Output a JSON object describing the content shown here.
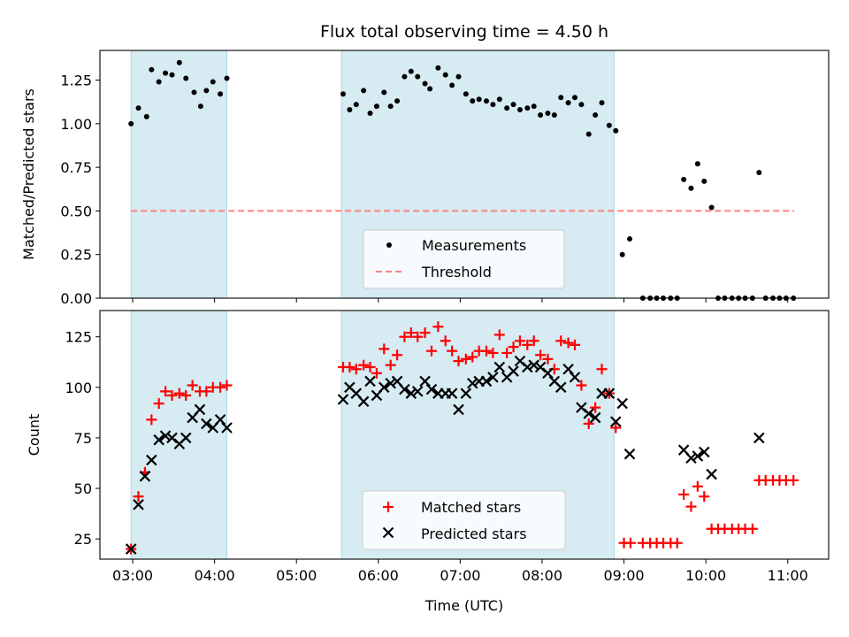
{
  "chart_data": {
    "type": "scatter",
    "title": "Flux total observing time = 4.50 h",
    "xlabel": "Time (UTC)",
    "x_unit": "hours UTC",
    "xlim": [
      2.6,
      11.5
    ],
    "xticks": [
      3,
      4,
      5,
      6,
      7,
      8,
      9,
      10,
      11
    ],
    "xtick_labels": [
      "03:00",
      "04:00",
      "05:00",
      "06:00",
      "07:00",
      "08:00",
      "09:00",
      "10:00",
      "11:00"
    ],
    "shaded_intervals": [
      [
        2.98,
        4.15
      ],
      [
        5.55,
        8.88
      ]
    ],
    "shade_color": "#add8e6",
    "panels": [
      {
        "ylabel": "Matched/Predicted stars",
        "ylim": [
          0,
          1.42
        ],
        "yticks": [
          0.0,
          0.25,
          0.5,
          0.75,
          1.0,
          1.25
        ],
        "ytick_labels": [
          "0.00",
          "0.25",
          "0.50",
          "0.75",
          "1.00",
          "1.25"
        ],
        "threshold": 0.5,
        "threshold_x": [
          2.98,
          11.08
        ],
        "threshold_color": "#ff7f7f",
        "legend": [
          "Measurements",
          "Threshold"
        ],
        "legend_position": "lower center",
        "series": [
          {
            "name": "Measurements",
            "color": "#000000",
            "marker": "dot",
            "points": [
              [
                2.98,
                1.0
              ],
              [
                3.07,
                1.09
              ],
              [
                3.17,
                1.04
              ],
              [
                3.23,
                1.31
              ],
              [
                3.32,
                1.24
              ],
              [
                3.4,
                1.29
              ],
              [
                3.48,
                1.28
              ],
              [
                3.57,
                1.35
              ],
              [
                3.65,
                1.26
              ],
              [
                3.75,
                1.18
              ],
              [
                3.83,
                1.1
              ],
              [
                3.9,
                1.19
              ],
              [
                3.98,
                1.24
              ],
              [
                4.07,
                1.17
              ],
              [
                4.15,
                1.26
              ],
              [
                5.57,
                1.17
              ],
              [
                5.65,
                1.08
              ],
              [
                5.73,
                1.11
              ],
              [
                5.82,
                1.19
              ],
              [
                5.9,
                1.06
              ],
              [
                5.98,
                1.1
              ],
              [
                6.07,
                1.18
              ],
              [
                6.15,
                1.1
              ],
              [
                6.23,
                1.13
              ],
              [
                6.32,
                1.27
              ],
              [
                6.4,
                1.3
              ],
              [
                6.48,
                1.27
              ],
              [
                6.57,
                1.23
              ],
              [
                6.63,
                1.2
              ],
              [
                6.73,
                1.32
              ],
              [
                6.82,
                1.28
              ],
              [
                6.9,
                1.22
              ],
              [
                6.98,
                1.27
              ],
              [
                7.07,
                1.17
              ],
              [
                7.15,
                1.13
              ],
              [
                7.23,
                1.14
              ],
              [
                7.32,
                1.13
              ],
              [
                7.4,
                1.11
              ],
              [
                7.48,
                1.14
              ],
              [
                7.57,
                1.09
              ],
              [
                7.65,
                1.11
              ],
              [
                7.73,
                1.08
              ],
              [
                7.82,
                1.09
              ],
              [
                7.9,
                1.1
              ],
              [
                7.98,
                1.05
              ],
              [
                8.07,
                1.06
              ],
              [
                8.15,
                1.05
              ],
              [
                8.23,
                1.15
              ],
              [
                8.32,
                1.12
              ],
              [
                8.4,
                1.15
              ],
              [
                8.48,
                1.11
              ],
              [
                8.57,
                0.94
              ],
              [
                8.65,
                1.05
              ],
              [
                8.73,
                1.12
              ],
              [
                8.82,
                0.99
              ],
              [
                8.9,
                0.96
              ],
              [
                8.98,
                0.25
              ],
              [
                9.07,
                0.34
              ],
              [
                9.23,
                0.0
              ],
              [
                9.32,
                0.0
              ],
              [
                9.4,
                0.0
              ],
              [
                9.48,
                0.0
              ],
              [
                9.57,
                0.0
              ],
              [
                9.65,
                0.0
              ],
              [
                9.73,
                0.68
              ],
              [
                9.82,
                0.63
              ],
              [
                9.9,
                0.77
              ],
              [
                9.98,
                0.67
              ],
              [
                10.07,
                0.52
              ],
              [
                10.15,
                0.0
              ],
              [
                10.23,
                0.0
              ],
              [
                10.32,
                0.0
              ],
              [
                10.4,
                0.0
              ],
              [
                10.48,
                0.0
              ],
              [
                10.57,
                0.0
              ],
              [
                10.65,
                0.72
              ],
              [
                10.73,
                0.0
              ],
              [
                10.82,
                0.0
              ],
              [
                10.9,
                0.0
              ],
              [
                10.98,
                0.0
              ],
              [
                11.07,
                0.0
              ]
            ]
          }
        ]
      },
      {
        "ylabel": "Count",
        "ylim": [
          15,
          138
        ],
        "yticks": [
          25,
          50,
          75,
          100,
          125
        ],
        "ytick_labels": [
          "25",
          "50",
          "75",
          "100",
          "125"
        ],
        "legend": [
          "Matched stars",
          "Predicted stars"
        ],
        "legend_position": "lower center",
        "series": [
          {
            "name": "Matched stars",
            "color": "#ff0000",
            "marker": "plus",
            "points": [
              [
                2.98,
                20
              ],
              [
                3.07,
                46
              ],
              [
                3.15,
                58
              ],
              [
                3.23,
                84
              ],
              [
                3.32,
                92
              ],
              [
                3.4,
                98
              ],
              [
                3.48,
                96
              ],
              [
                3.57,
                97
              ],
              [
                3.65,
                96
              ],
              [
                3.73,
                101
              ],
              [
                3.82,
                98
              ],
              [
                3.9,
                98
              ],
              [
                3.98,
                100
              ],
              [
                4.07,
                100
              ],
              [
                4.15,
                101
              ],
              [
                5.57,
                110
              ],
              [
                5.65,
                110
              ],
              [
                5.73,
                109
              ],
              [
                5.82,
                111
              ],
              [
                5.9,
                110
              ],
              [
                5.98,
                107
              ],
              [
                6.07,
                119
              ],
              [
                6.15,
                111
              ],
              [
                6.23,
                116
              ],
              [
                6.32,
                125
              ],
              [
                6.4,
                127
              ],
              [
                6.48,
                125
              ],
              [
                6.57,
                127
              ],
              [
                6.65,
                118
              ],
              [
                6.73,
                130
              ],
              [
                6.82,
                123
              ],
              [
                6.9,
                118
              ],
              [
                6.98,
                113
              ],
              [
                7.07,
                114
              ],
              [
                7.15,
                115
              ],
              [
                7.23,
                118
              ],
              [
                7.32,
                118
              ],
              [
                7.4,
                117
              ],
              [
                7.48,
                126
              ],
              [
                7.57,
                117
              ],
              [
                7.65,
                120
              ],
              [
                7.73,
                123
              ],
              [
                7.82,
                121
              ],
              [
                7.9,
                123
              ],
              [
                7.98,
                116
              ],
              [
                8.07,
                114
              ],
              [
                8.15,
                109
              ],
              [
                8.23,
                123
              ],
              [
                8.32,
                122
              ],
              [
                8.4,
                121
              ],
              [
                8.48,
                101
              ],
              [
                8.57,
                82
              ],
              [
                8.65,
                90
              ],
              [
                8.73,
                109
              ],
              [
                8.82,
                97
              ],
              [
                8.9,
                80
              ],
              [
                9.0,
                23
              ],
              [
                9.08,
                23
              ],
              [
                9.23,
                23
              ],
              [
                9.32,
                23
              ],
              [
                9.4,
                23
              ],
              [
                9.48,
                23
              ],
              [
                9.57,
                23
              ],
              [
                9.65,
                23
              ],
              [
                9.73,
                47
              ],
              [
                9.82,
                41
              ],
              [
                9.9,
                51
              ],
              [
                9.98,
                46
              ],
              [
                10.07,
                30
              ],
              [
                10.15,
                30
              ],
              [
                10.23,
                30
              ],
              [
                10.32,
                30
              ],
              [
                10.4,
                30
              ],
              [
                10.48,
                30
              ],
              [
                10.57,
                30
              ],
              [
                10.65,
                54
              ],
              [
                10.73,
                54
              ],
              [
                10.82,
                54
              ],
              [
                10.9,
                54
              ],
              [
                10.98,
                54
              ],
              [
                11.07,
                54
              ]
            ]
          },
          {
            "name": "Predicted stars",
            "color": "#000000",
            "marker": "x",
            "points": [
              [
                2.98,
                20
              ],
              [
                3.07,
                42
              ],
              [
                3.15,
                56
              ],
              [
                3.23,
                64
              ],
              [
                3.32,
                74
              ],
              [
                3.4,
                76
              ],
              [
                3.48,
                75
              ],
              [
                3.57,
                72
              ],
              [
                3.65,
                75
              ],
              [
                3.73,
                85
              ],
              [
                3.82,
                89
              ],
              [
                3.9,
                82
              ],
              [
                3.98,
                80
              ],
              [
                4.07,
                84
              ],
              [
                4.15,
                80
              ],
              [
                5.57,
                94
              ],
              [
                5.65,
                100
              ],
              [
                5.73,
                97
              ],
              [
                5.82,
                93
              ],
              [
                5.9,
                103
              ],
              [
                5.98,
                96
              ],
              [
                6.07,
                100
              ],
              [
                6.15,
                102
              ],
              [
                6.23,
                103
              ],
              [
                6.32,
                99
              ],
              [
                6.4,
                97
              ],
              [
                6.48,
                98
              ],
              [
                6.57,
                103
              ],
              [
                6.65,
                99
              ],
              [
                6.73,
                97
              ],
              [
                6.82,
                97
              ],
              [
                6.9,
                97
              ],
              [
                6.98,
                89
              ],
              [
                7.07,
                97
              ],
              [
                7.15,
                102
              ],
              [
                7.23,
                103
              ],
              [
                7.32,
                103
              ],
              [
                7.4,
                105
              ],
              [
                7.48,
                110
              ],
              [
                7.57,
                105
              ],
              [
                7.65,
                108
              ],
              [
                7.73,
                113
              ],
              [
                7.82,
                110
              ],
              [
                7.9,
                111
              ],
              [
                7.98,
                110
              ],
              [
                8.07,
                107
              ],
              [
                8.15,
                103
              ],
              [
                8.23,
                100
              ],
              [
                8.32,
                109
              ],
              [
                8.4,
                105
              ],
              [
                8.48,
                90
              ],
              [
                8.57,
                87
              ],
              [
                8.65,
                85
              ],
              [
                8.73,
                97
              ],
              [
                8.82,
                97
              ],
              [
                8.9,
                83
              ],
              [
                8.98,
                92
              ],
              [
                9.07,
                67
              ],
              [
                9.73,
                69
              ],
              [
                9.82,
                65
              ],
              [
                9.9,
                66
              ],
              [
                9.98,
                68
              ],
              [
                10.07,
                57
              ],
              [
                10.65,
                75
              ]
            ]
          }
        ]
      }
    ]
  }
}
